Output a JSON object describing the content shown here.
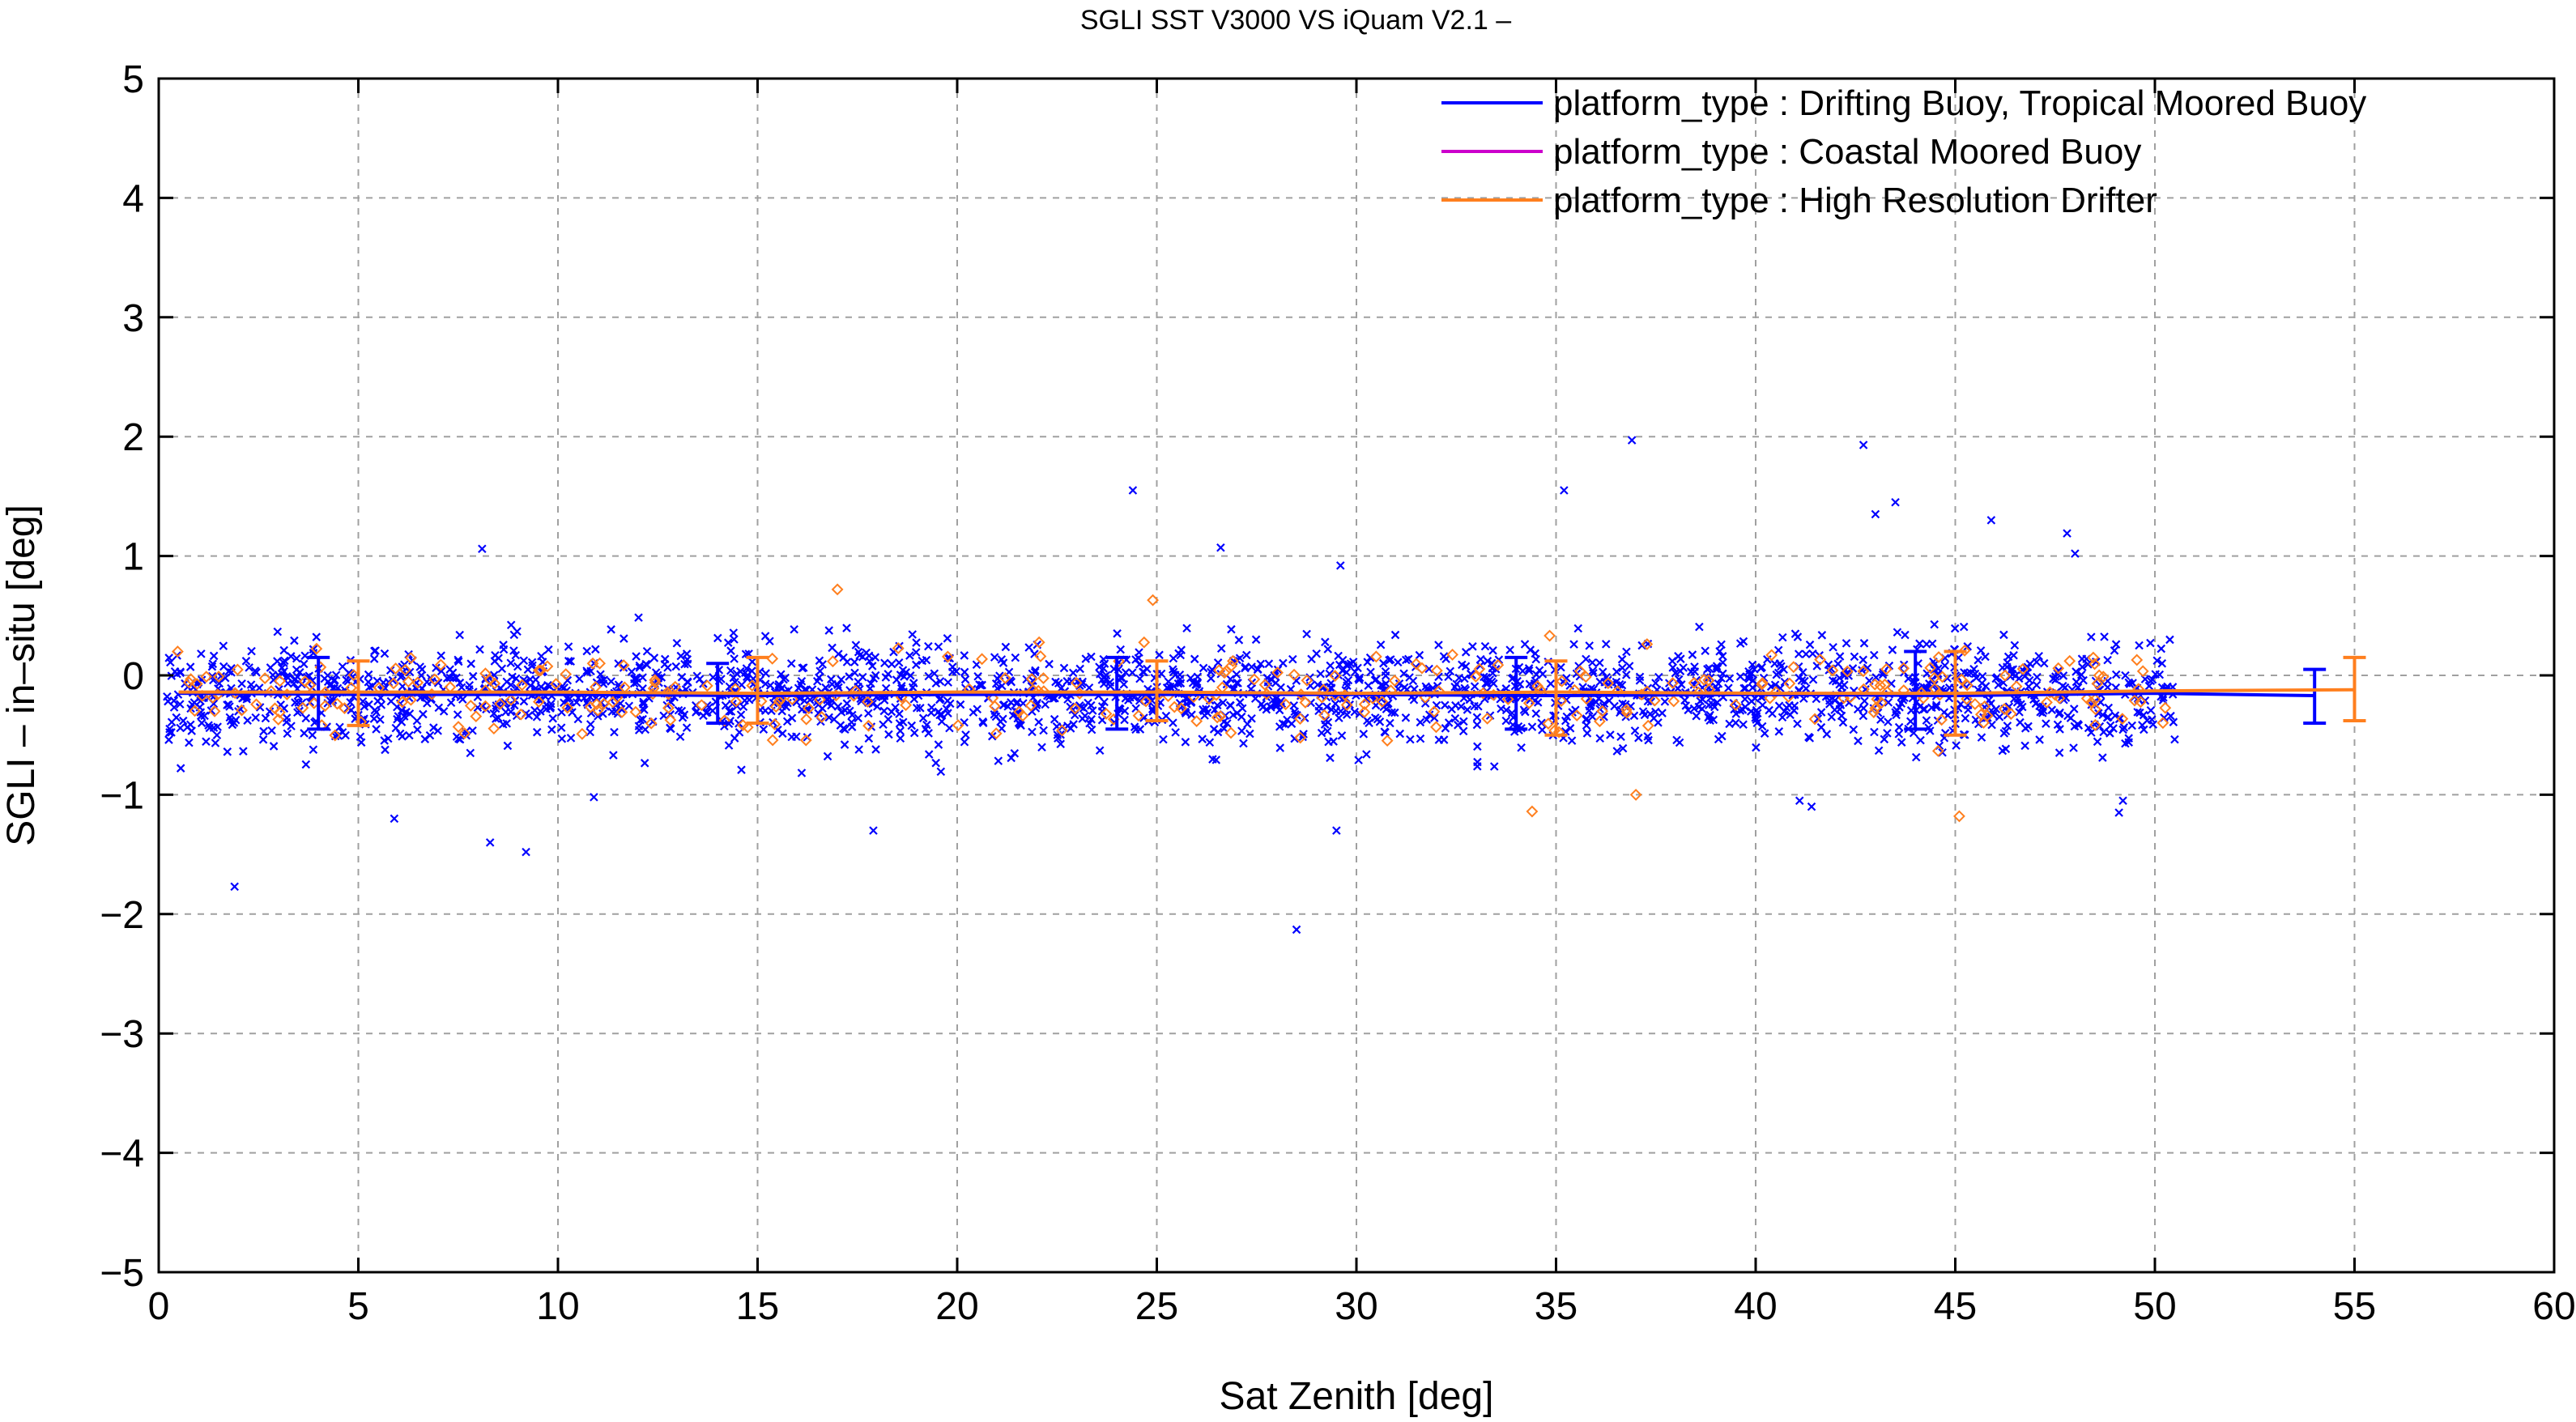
{
  "chart_data": {
    "type": "scatter",
    "title": "SGLI SST V3000 VS iQuam V2.1  –",
    "xlabel": "Sat Zenith [deg]",
    "ylabel": "SGLI – in–situ [deg]",
    "xlim": [
      0,
      60
    ],
    "ylim": [
      -5,
      5
    ],
    "xticks": [
      "0",
      "5",
      "10",
      "15",
      "20",
      "25",
      "30",
      "35",
      "40",
      "45",
      "50",
      "55",
      "60"
    ],
    "yticks": [
      "−5",
      "−4",
      "−3",
      "−2",
      "−1",
      "0",
      "1",
      "2",
      "3",
      "4",
      "5"
    ],
    "grid": true,
    "legend_position": "top-right",
    "series": [
      {
        "name": "platform_type : Drifting Buoy, Tropical Moored Buoy",
        "color": "#0000ff",
        "marker": "x",
        "mean_line": {
          "x": [
            0.5,
            5,
            10,
            15,
            20,
            25,
            30,
            35,
            40,
            45,
            50,
            54
          ],
          "y": [
            -0.15,
            -0.16,
            -0.16,
            -0.17,
            -0.16,
            -0.16,
            -0.16,
            -0.17,
            -0.16,
            -0.17,
            -0.15,
            -0.17
          ]
        },
        "error_bars": [
          {
            "x": 4,
            "mean": -0.15,
            "low": -0.45,
            "high": 0.15
          },
          {
            "x": 14,
            "mean": -0.15,
            "low": -0.4,
            "high": 0.1
          },
          {
            "x": 24,
            "mean": -0.15,
            "low": -0.45,
            "high": 0.15
          },
          {
            "x": 34,
            "mean": -0.15,
            "low": -0.45,
            "high": 0.15
          },
          {
            "x": 44,
            "mean": -0.15,
            "low": -0.45,
            "high": 0.2
          },
          {
            "x": 54,
            "mean": -0.17,
            "low": -0.4,
            "high": 0.05
          }
        ],
        "outliers": [
          {
            "x": 1.9,
            "y": -1.77
          },
          {
            "x": 5.9,
            "y": -1.2
          },
          {
            "x": 8.3,
            "y": -1.4
          },
          {
            "x": 9.2,
            "y": -1.48
          },
          {
            "x": 8.1,
            "y": 1.06
          },
          {
            "x": 24.4,
            "y": 1.55
          },
          {
            "x": 26.6,
            "y": 1.07
          },
          {
            "x": 28.5,
            "y": -2.13
          },
          {
            "x": 29.5,
            "y": -1.3
          },
          {
            "x": 29.6,
            "y": 0.92
          },
          {
            "x": 35.2,
            "y": 1.55
          },
          {
            "x": 36.9,
            "y": 1.97
          },
          {
            "x": 42.7,
            "y": 1.93
          },
          {
            "x": 43.0,
            "y": 1.35
          },
          {
            "x": 43.5,
            "y": 1.45
          },
          {
            "x": 45.9,
            "y": 1.3
          },
          {
            "x": 47.8,
            "y": 1.19
          },
          {
            "x": 48.0,
            "y": 1.02
          },
          {
            "x": 17.9,
            "y": -1.3
          },
          {
            "x": 10.9,
            "y": -1.02
          },
          {
            "x": 49.2,
            "y": -1.05
          },
          {
            "x": 49.1,
            "y": -1.15
          },
          {
            "x": 41.1,
            "y": -1.05
          },
          {
            "x": 41.4,
            "y": -1.1
          }
        ],
        "bulk": {
          "x_range": [
            0.2,
            50.5
          ],
          "y_mean": -0.15,
          "y_sd": 0.3,
          "count": 2200
        }
      },
      {
        "name": "platform_type : Coastal Moored Buoy",
        "color": "#cc00cc",
        "marker": "o",
        "mean_line": null,
        "error_bars": [],
        "outliers": [],
        "bulk": null
      },
      {
        "name": "platform_type : High Resolution Drifter",
        "color": "#ff7f1e",
        "marker": "diamond",
        "mean_line": {
          "x": [
            0.5,
            5,
            10,
            15,
            20,
            25,
            30,
            35,
            40,
            45,
            50,
            55
          ],
          "y": [
            -0.14,
            -0.14,
            -0.14,
            -0.15,
            -0.14,
            -0.14,
            -0.15,
            -0.14,
            -0.15,
            -0.15,
            -0.13,
            -0.12
          ]
        },
        "error_bars": [
          {
            "x": 5,
            "mean": -0.14,
            "low": -0.42,
            "high": 0.12
          },
          {
            "x": 15,
            "mean": -0.15,
            "low": -0.4,
            "high": 0.15
          },
          {
            "x": 25,
            "mean": -0.14,
            "low": -0.38,
            "high": 0.12
          },
          {
            "x": 35,
            "mean": -0.14,
            "low": -0.5,
            "high": 0.12
          },
          {
            "x": 45,
            "mean": -0.15,
            "low": -0.5,
            "high": 0.2
          },
          {
            "x": 55,
            "mean": -0.12,
            "low": -0.38,
            "high": 0.15
          }
        ],
        "outliers": [
          {
            "x": 17.0,
            "y": 0.72
          },
          {
            "x": 34.4,
            "y": -1.14
          },
          {
            "x": 45.1,
            "y": -1.18
          },
          {
            "x": 37.0,
            "y": -1.0
          },
          {
            "x": 24.9,
            "y": 0.63
          }
        ],
        "bulk": {
          "x_range": [
            0.3,
            50.5
          ],
          "y_mean": -0.15,
          "y_sd": 0.25,
          "count": 320
        }
      }
    ]
  }
}
